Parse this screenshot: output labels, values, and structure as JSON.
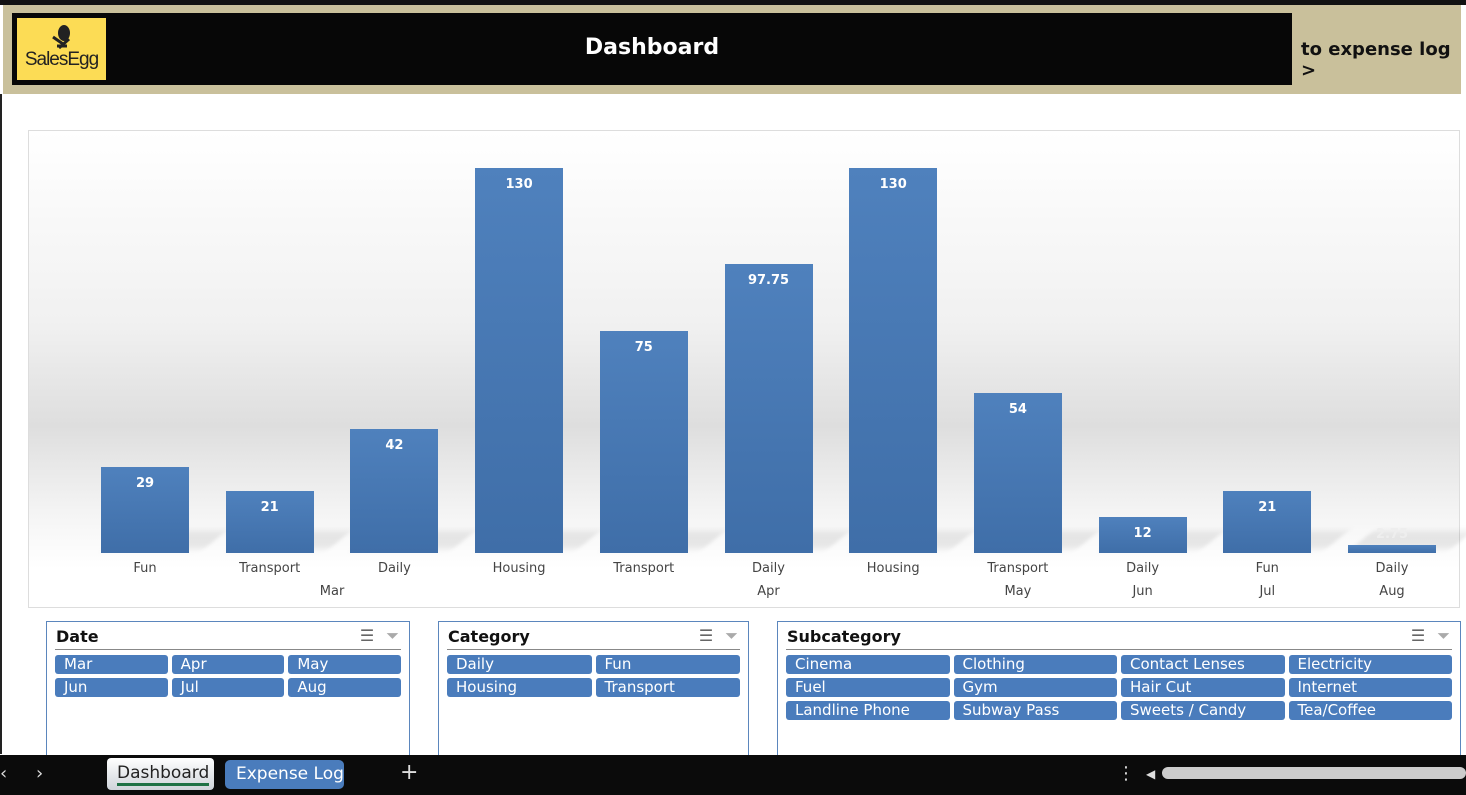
{
  "header": {
    "logo": "SalesEgg",
    "title": "Dashboard",
    "link": "to expense log >"
  },
  "chart_data": {
    "type": "bar",
    "title": "",
    "xlabel": "",
    "ylabel": "",
    "ylim": [
      0,
      130
    ],
    "categories": [
      "Fun",
      "Transport",
      "Daily",
      "Housing",
      "Transport",
      "Daily",
      "Housing",
      "Transport",
      "Daily",
      "Fun",
      "Daily"
    ],
    "values": [
      29,
      21,
      42,
      130,
      75,
      97.75,
      130,
      54,
      12,
      21,
      2.75
    ],
    "value_labels": [
      "29",
      "21",
      "42",
      "130",
      "75",
      "97.75",
      "130",
      "54",
      "12",
      "21",
      "2.75"
    ],
    "groups": [
      {
        "label": "Mar",
        "span": 4
      },
      {
        "label": "Apr",
        "span": 3
      },
      {
        "label": "May",
        "span": 1
      },
      {
        "label": "Jun",
        "span": 1
      },
      {
        "label": "Jul",
        "span": 1
      },
      {
        "label": "Aug",
        "span": 1
      }
    ],
    "color": "#4f81bd"
  },
  "slicers": [
    {
      "title": "Date",
      "cols": 3,
      "items": [
        "Mar",
        "Apr",
        "May",
        "Jun",
        "Jul",
        "Aug"
      ]
    },
    {
      "title": "Category",
      "cols": 2,
      "items": [
        "Daily",
        "Fun",
        "Housing",
        "Transport"
      ]
    },
    {
      "title": "Subcategory",
      "cols": 4,
      "items": [
        "Cinema",
        "Clothing",
        "Contact Lenses",
        "Electricity",
        "Fuel",
        "Gym",
        "Hair Cut",
        "Internet",
        "Landline Phone",
        "Subway Pass",
        "Sweets / Candy",
        "Tea/Coffee"
      ]
    }
  ],
  "tabs": {
    "active": "Dashboard",
    "other": "Expense Log",
    "add": "+"
  }
}
